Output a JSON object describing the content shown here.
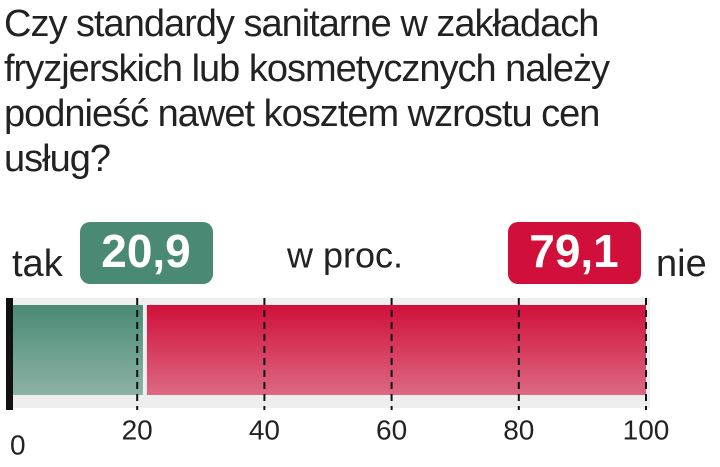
{
  "chart_data": {
    "type": "stacked-bar-horizontal",
    "title": "Czy standardy sanitarne w zakładach fryzjerskich lub kosmetycznych należy podnieść nawet kosztem wzrostu cen usług?",
    "subtitle": "w proc.",
    "categories": [
      null
    ],
    "series": [
      {
        "name": "tak",
        "color": "#4a8a75",
        "values": [
          20.9
        ],
        "value_labels": [
          "20,9"
        ]
      },
      {
        "name": "nie",
        "color": "#d0103a",
        "values": [
          79.1
        ],
        "value_labels": [
          "79,1"
        ]
      }
    ],
    "xlim": [
      0,
      100
    ],
    "xticks": [
      0,
      20,
      40,
      60,
      80,
      100
    ],
    "grid": true
  }
}
